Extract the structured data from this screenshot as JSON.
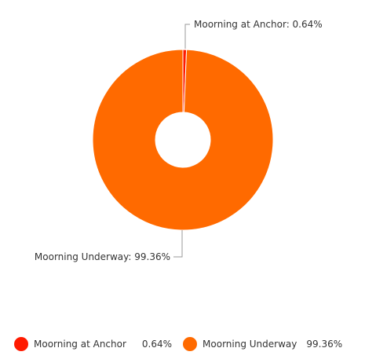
{
  "chart_data": {
    "type": "pie",
    "donut": true,
    "categories": [
      "Moorning at Anchor",
      "Moorning Underway"
    ],
    "values": [
      0.64,
      99.36
    ],
    "value_labels": [
      "0.64%",
      "99.36%"
    ],
    "callout_labels": [
      "Moorning at Anchor: 0.64%",
      "Moorning Underway: 99.36%"
    ],
    "colors": [
      "#ff1a00",
      "#ff6a00"
    ],
    "legend_placement": "bottom"
  },
  "legend": {
    "items": [
      {
        "label": "Moorning at Anchor",
        "value": "0.64%",
        "color": "#ff1a00"
      },
      {
        "label": "Moorning Underway",
        "value": "99.36%",
        "color": "#ff6a00"
      }
    ]
  }
}
